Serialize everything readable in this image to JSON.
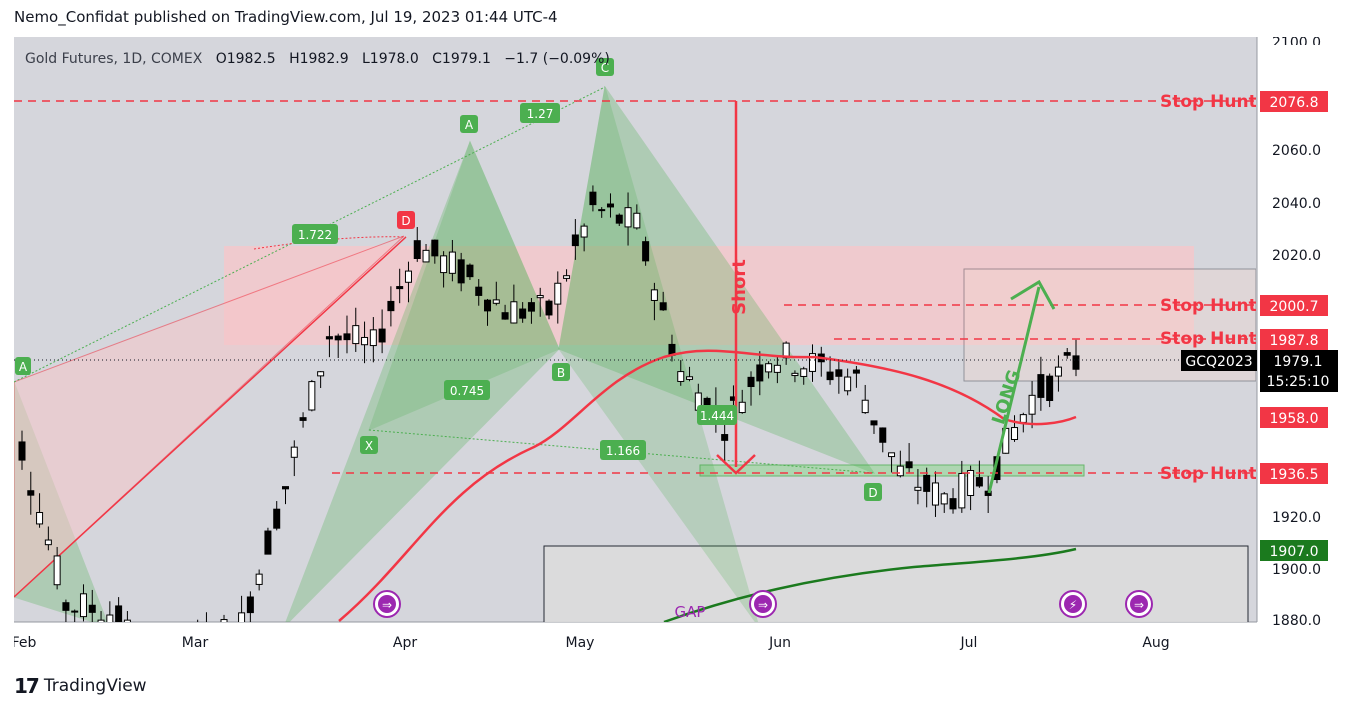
{
  "header": {
    "publish_line": "Nemo_Confidat published on TradingView.com, Jul 19, 2023 01:44 UTC-4"
  },
  "footer": {
    "brand": "TradingView",
    "logo_icon": "tradingview-logo-icon"
  },
  "legend": {
    "symbol": "Gold Futures, 1D, COMEX",
    "open_label": "O",
    "open": "1982.5",
    "high_label": "H",
    "high": "1982.9",
    "low_label": "L",
    "low": "1978.0",
    "close_label": "C",
    "close": "1979.1",
    "change": "−1.7 (−0.09%)"
  },
  "price_axis": {
    "ticks": [
      "2100.0",
      "2060.0",
      "2040.0",
      "2020.0",
      "1920.0",
      "1900.0",
      "1880.0"
    ],
    "badges": [
      {
        "text": "2076.8",
        "color": "#f23645"
      },
      {
        "text": "2000.7",
        "color": "#f23645"
      },
      {
        "text": "1987.8",
        "color": "#f23645"
      },
      {
        "text": "1958.0",
        "color": "#f23645"
      },
      {
        "text": "1936.5",
        "color": "#f23645"
      },
      {
        "text": "1907.0",
        "color": "#1b7a1e"
      }
    ],
    "symbol_tag": "GCQ2023",
    "last_price": "1979.1",
    "countdown": "15:25:10"
  },
  "time_axis": {
    "labels": [
      "Feb",
      "Mar",
      "Apr",
      "May",
      "Jun",
      "Jul",
      "Aug"
    ]
  },
  "annotations": {
    "stop_hunt_label": "Stop Hunt",
    "short_label": "Short",
    "long_label": "LONG",
    "gap_label": "GAP",
    "pattern_points": [
      "A",
      "A",
      "C",
      "D",
      "X",
      "B",
      "D"
    ],
    "ratios": [
      "1.27",
      "1.722",
      "0.745",
      "1.166",
      "1.444"
    ]
  },
  "colors": {
    "bull_candle": "#ffffff",
    "bear_candle": "#000000",
    "stop_hunt": "#f23645",
    "ma_fast": "#f23645",
    "ma_slow": "#1b7a1e",
    "harmonic_fill": "#4caf50",
    "pink_zone": "#f7c6c9"
  },
  "chart_data": {
    "type": "candlestick",
    "title": "Gold Futures, 1D, COMEX",
    "xlabel": "",
    "ylabel": "",
    "ylim": [
      1876,
      2108
    ],
    "x": [
      "2023-01-30",
      "2023-02-06",
      "2023-02-13",
      "2023-02-20",
      "2023-02-27",
      "2023-03-06",
      "2023-03-13",
      "2023-03-20",
      "2023-03-27",
      "2023-04-03",
      "2023-04-10",
      "2023-04-17",
      "2023-04-24",
      "2023-05-01",
      "2023-05-08",
      "2023-05-15",
      "2023-05-22",
      "2023-05-29",
      "2023-06-05",
      "2023-06-12",
      "2023-06-19",
      "2023-06-26",
      "2023-07-03",
      "2023-07-10",
      "2023-07-17"
    ],
    "close": [
      1945,
      1883,
      1880,
      1860,
      1867,
      1875,
      1930,
      1990,
      1985,
      2025,
      2015,
      2000,
      1999,
      2040,
      2033,
      1975,
      1955,
      1982,
      1978,
      1972,
      1935,
      1925,
      1933,
      1965,
      1979.1
    ],
    "moving_averages": [
      {
        "name": "",
        "color": "#f23645",
        "last": 1958.0
      },
      {
        "name": "",
        "color": "#1b7a1e",
        "last": 1907.0
      }
    ],
    "levels": [
      2076.8,
      2000.7,
      1987.8,
      1936.5
    ],
    "last_close": 1979.1,
    "grid": false
  }
}
